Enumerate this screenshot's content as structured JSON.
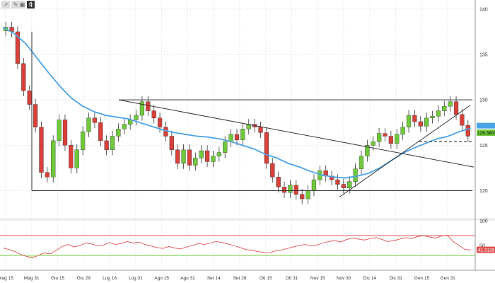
{
  "toolbar": {
    "cursor_icon": "cursor-icon",
    "pen_icon": "pen-icon",
    "view_icon": "layout-icon",
    "badge": "0"
  },
  "chart_data": [
    {
      "type": "candlestick",
      "title": "",
      "x_tick_labels": [
        "Mag 15",
        "Mag 31",
        "Giu 15",
        "Giu 29",
        "Lug 16",
        "Lug 31",
        "Ago 15",
        "Ago 31",
        "Set 14",
        "Set 28",
        "Ott 15",
        "Ott 31",
        "Nov 15",
        "Nov 30",
        "Dic 14",
        "Dic 31",
        "Gen 15",
        "Gen 31"
      ],
      "ylim": [
        117,
        141
      ],
      "y_ticks": [
        120,
        125,
        130,
        135,
        140
      ],
      "closes": [
        138.0,
        137.5,
        134.0,
        131.0,
        129.5,
        127.0,
        122.0,
        121.5,
        125.5,
        127.8,
        125.0,
        122.5,
        124.5,
        126.5,
        128.0,
        127.5,
        125.5,
        124.5,
        126.0,
        126.8,
        127.3,
        127.8,
        128.3,
        129.8,
        128.8,
        128.0,
        127.0,
        126.0,
        124.5,
        123.0,
        124.5,
        122.8,
        123.6,
        124.4,
        123.2,
        123.8,
        124.2,
        125.4,
        126.2,
        125.6,
        126.8,
        127.3,
        127.0,
        126.4,
        123.0,
        121.5,
        120.4,
        119.8,
        120.6,
        119.6,
        119.1,
        120.0,
        121.2,
        122.2,
        121.6,
        121.2,
        120.7,
        120.3,
        121.0,
        122.4,
        123.8,
        125.0,
        125.4,
        126.3,
        126.0,
        125.2,
        126.2,
        127.0,
        128.3,
        127.6,
        127.1,
        128.0,
        128.2,
        128.8,
        129.3,
        129.8,
        128.4,
        127.2,
        126.0
      ],
      "moving_average": [
        138.0,
        137.3,
        136.2,
        134.6,
        133.0,
        131.5,
        130.2,
        129.3,
        128.7,
        128.3,
        128.1,
        127.9,
        127.5,
        127.1,
        126.7,
        126.4,
        126.2,
        126.0,
        125.9,
        125.7,
        125.4,
        125.0,
        124.6,
        124.0,
        123.6,
        123.0,
        122.6,
        122.1,
        121.7,
        121.5,
        121.4,
        121.6,
        121.9,
        122.5,
        123.3,
        124.1,
        124.7,
        125.2,
        125.7,
        126.0,
        126.5,
        126.9
      ],
      "current_price": "126.3800",
      "current_price_label": "126.3800",
      "horizontal_levels": [
        130.0,
        120.0,
        125.4
      ],
      "grid": true
    },
    {
      "type": "line",
      "indicator": "oscillator",
      "ylim": [
        0,
        100
      ],
      "y_ticks": [
        50,
        100
      ],
      "levels": [
        70,
        30
      ],
      "current_value_label": "41.3129",
      "values": [
        45,
        42,
        38,
        32,
        28,
        25,
        30,
        35,
        33,
        40,
        48,
        52,
        47,
        50,
        55,
        53,
        49,
        51,
        56,
        52,
        54,
        58,
        55,
        57,
        52,
        49,
        46,
        44,
        48,
        45,
        43,
        47,
        50,
        54,
        52,
        55,
        58,
        56,
        53,
        50,
        46,
        42,
        40,
        38,
        36,
        35,
        39,
        41,
        44,
        47,
        50,
        52,
        49,
        51,
        55,
        58,
        60,
        57,
        62,
        65,
        63,
        61,
        64,
        66,
        62,
        58,
        60,
        63,
        66,
        64,
        68,
        70,
        67,
        65,
        69,
        71,
        58,
        50,
        42,
        41
      ]
    }
  ]
}
